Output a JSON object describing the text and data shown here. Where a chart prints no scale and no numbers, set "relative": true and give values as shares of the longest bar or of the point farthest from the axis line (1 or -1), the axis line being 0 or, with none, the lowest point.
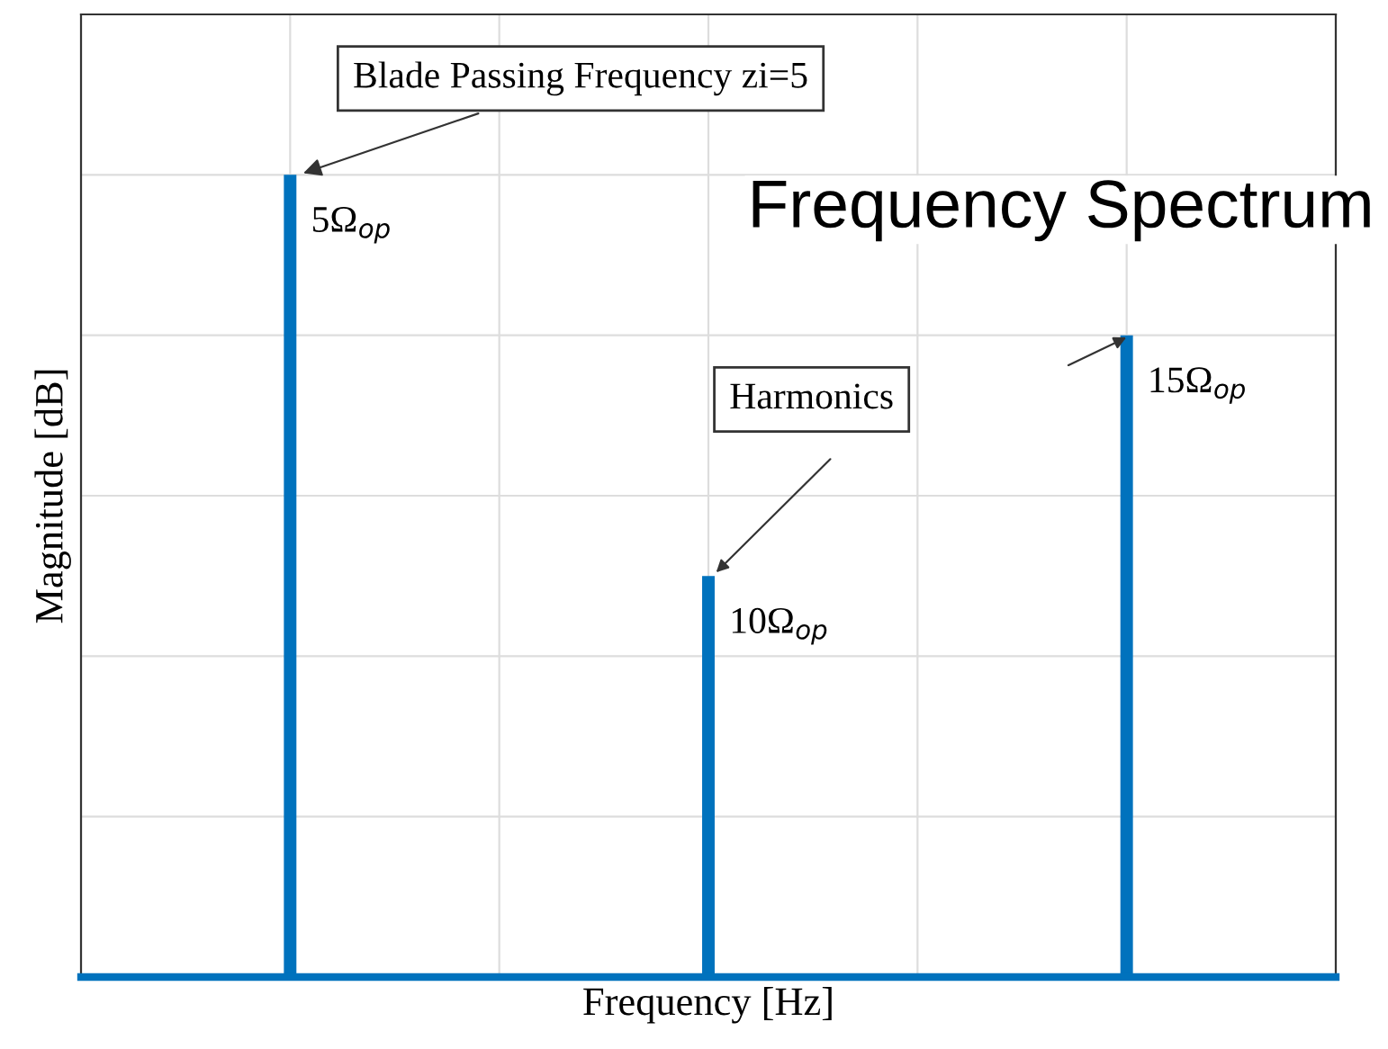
{
  "chart_data": {
    "type": "bar",
    "title": "Frequency Spectrum",
    "xlabel": "Frequency [Hz]",
    "ylabel": "Magnitude [dB]",
    "categories": [
      null,
      null,
      null
    ],
    "values": [
      1,
      0.5,
      0.8
    ],
    "color": "#0072bd",
    "relative": true,
    "grid": true,
    "annotations": [
      "Blade Passing Frequency zi=5",
      "Harmonics",
      "5Ω$_{op}$",
      "10Ω$_{op}$",
      "15Ω$_{op}$"
    ]
  }
}
